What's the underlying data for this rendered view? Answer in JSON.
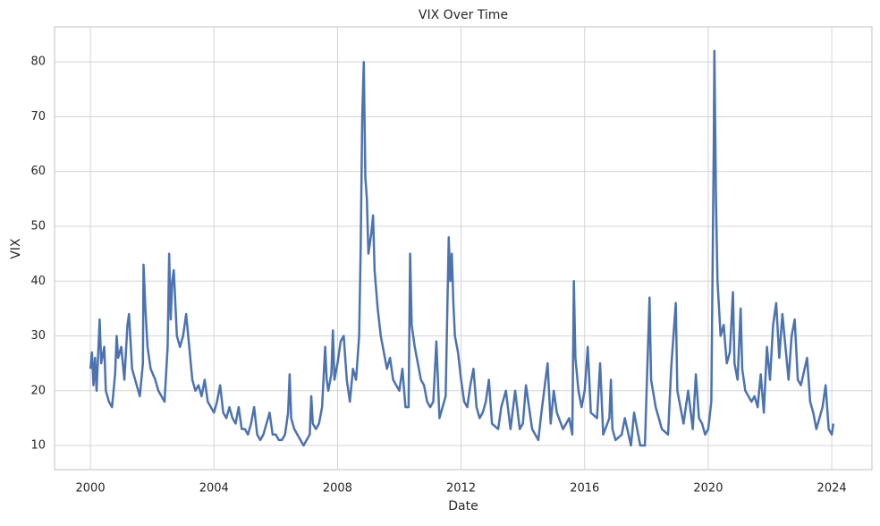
{
  "chart_data": {
    "type": "line",
    "title": "VIX Over Time",
    "xlabel": "Date",
    "ylabel": "VIX",
    "x": [
      2000.0,
      2000.05,
      2000.1,
      2000.15,
      2000.2,
      2000.3,
      2000.35,
      2000.45,
      2000.5,
      2000.6,
      2000.7,
      2000.8,
      2000.85,
      2000.9,
      2001.0,
      2001.1,
      2001.2,
      2001.25,
      2001.35,
      2001.5,
      2001.6,
      2001.7,
      2001.72,
      2001.78,
      2001.85,
      2001.95,
      2002.1,
      2002.2,
      2002.3,
      2002.4,
      2002.5,
      2002.55,
      2002.6,
      2002.65,
      2002.7,
      2002.75,
      2002.8,
      2002.9,
      2003.0,
      2003.1,
      2003.2,
      2003.3,
      2003.4,
      2003.5,
      2003.6,
      2003.7,
      2003.8,
      2003.9,
      2004.0,
      2004.1,
      2004.2,
      2004.3,
      2004.4,
      2004.5,
      2004.6,
      2004.7,
      2004.8,
      2004.9,
      2005.0,
      2005.1,
      2005.2,
      2005.3,
      2005.4,
      2005.5,
      2005.6,
      2005.7,
      2005.8,
      2005.9,
      2006.0,
      2006.1,
      2006.2,
      2006.3,
      2006.4,
      2006.45,
      2006.5,
      2006.6,
      2006.7,
      2006.8,
      2006.9,
      2007.0,
      2007.1,
      2007.15,
      2007.2,
      2007.3,
      2007.4,
      2007.5,
      2007.6,
      2007.65,
      2007.7,
      2007.8,
      2007.85,
      2007.9,
      2008.0,
      2008.1,
      2008.2,
      2008.3,
      2008.4,
      2008.5,
      2008.6,
      2008.7,
      2008.75,
      2008.8,
      2008.85,
      2008.9,
      2008.95,
      2009.0,
      2009.1,
      2009.15,
      2009.2,
      2009.3,
      2009.4,
      2009.5,
      2009.6,
      2009.7,
      2009.8,
      2009.9,
      2010.0,
      2010.1,
      2010.2,
      2010.3,
      2010.35,
      2010.4,
      2010.5,
      2010.6,
      2010.7,
      2010.8,
      2010.9,
      2011.0,
      2011.1,
      2011.2,
      2011.3,
      2011.4,
      2011.5,
      2011.6,
      2011.65,
      2011.7,
      2011.75,
      2011.8,
      2011.9,
      2012.0,
      2012.1,
      2012.2,
      2012.3,
      2012.4,
      2012.5,
      2012.6,
      2012.7,
      2012.8,
      2012.9,
      2013.0,
      2013.2,
      2013.3,
      2013.45,
      2013.6,
      2013.75,
      2013.9,
      2014.0,
      2014.1,
      2014.3,
      2014.5,
      2014.6,
      2014.8,
      2014.9,
      2015.0,
      2015.1,
      2015.3,
      2015.5,
      2015.6,
      2015.65,
      2015.7,
      2015.8,
      2015.9,
      2016.0,
      2016.1,
      2016.2,
      2016.4,
      2016.5,
      2016.6,
      2016.8,
      2016.85,
      2016.9,
      2017.0,
      2017.2,
      2017.3,
      2017.5,
      2017.6,
      2017.8,
      2017.95,
      2018.1,
      2018.15,
      2018.3,
      2018.4,
      2018.5,
      2018.7,
      2018.8,
      2018.95,
      2019.0,
      2019.2,
      2019.35,
      2019.5,
      2019.6,
      2019.7,
      2019.8,
      2019.9,
      2020.0,
      2020.1,
      2020.18,
      2020.2,
      2020.25,
      2020.3,
      2020.4,
      2020.5,
      2020.6,
      2020.7,
      2020.8,
      2020.85,
      2020.95,
      2021.05,
      2021.1,
      2021.2,
      2021.4,
      2021.5,
      2021.6,
      2021.7,
      2021.8,
      2021.9,
      2022.0,
      2022.1,
      2022.2,
      2022.3,
      2022.4,
      2022.5,
      2022.6,
      2022.7,
      2022.8,
      2022.9,
      2023.0,
      2023.2,
      2023.3,
      2023.4,
      2023.5,
      2023.6,
      2023.7,
      2023.8,
      2023.9,
      2024.0,
      2024.05
    ],
    "series": [
      {
        "name": "VIX",
        "color": "#4c72b0",
        "values": [
          24,
          27,
          21,
          26,
          20,
          33,
          25,
          28,
          20,
          18,
          17,
          23,
          30,
          26,
          28,
          22,
          32,
          34,
          24,
          21,
          19,
          25,
          43,
          35,
          28,
          24,
          22,
          20,
          19,
          18,
          28,
          45,
          33,
          40,
          42,
          36,
          30,
          28,
          30,
          34,
          28,
          22,
          20,
          21,
          19,
          22,
          18,
          17,
          16,
          18,
          21,
          16,
          15,
          17,
          15,
          14,
          17,
          13,
          13,
          12,
          14,
          17,
          12,
          11,
          12,
          14,
          16,
          12,
          12,
          11,
          11,
          12,
          16,
          23,
          15,
          13,
          12,
          11,
          10,
          11,
          12,
          19,
          14,
          13,
          14,
          17,
          28,
          22,
          20,
          23,
          31,
          22,
          25,
          29,
          30,
          22,
          18,
          24,
          22,
          30,
          46,
          70,
          80,
          59,
          55,
          45,
          49,
          52,
          42,
          35,
          30,
          27,
          24,
          26,
          22,
          21,
          20,
          24,
          17,
          17,
          45,
          32,
          28,
          25,
          22,
          21,
          18,
          17,
          18,
          29,
          15,
          17,
          19,
          48,
          40,
          45,
          36,
          30,
          27,
          22,
          18,
          17,
          21,
          24,
          17,
          15,
          16,
          18,
          22,
          14,
          13,
          17,
          20,
          13,
          20,
          13,
          14,
          21,
          13,
          11,
          16,
          25,
          14,
          20,
          16,
          13,
          15,
          12,
          40,
          26,
          20,
          17,
          20,
          28,
          16,
          15,
          25,
          12,
          15,
          22,
          13,
          11,
          12,
          15,
          10,
          16,
          10,
          10,
          37,
          22,
          17,
          15,
          13,
          12,
          24,
          36,
          20,
          14,
          20,
          13,
          23,
          15,
          14,
          12,
          13,
          18,
          65,
          82,
          55,
          40,
          30,
          32,
          25,
          27,
          38,
          25,
          22,
          35,
          24,
          20,
          18,
          19,
          17,
          23,
          16,
          28,
          22,
          32,
          36,
          26,
          34,
          28,
          22,
          30,
          33,
          22,
          21,
          26,
          18,
          16,
          13,
          15,
          17,
          21,
          13,
          12,
          14
        ]
      }
    ],
    "xlim": [
      1998.84,
      2025.3
    ],
    "xticks": [
      2000,
      2004,
      2008,
      2012,
      2016,
      2020,
      2024
    ],
    "ylim": [
      5.6,
      86.4
    ],
    "yticks": [
      10,
      20,
      30,
      40,
      50,
      60,
      70,
      80
    ],
    "grid": true
  }
}
